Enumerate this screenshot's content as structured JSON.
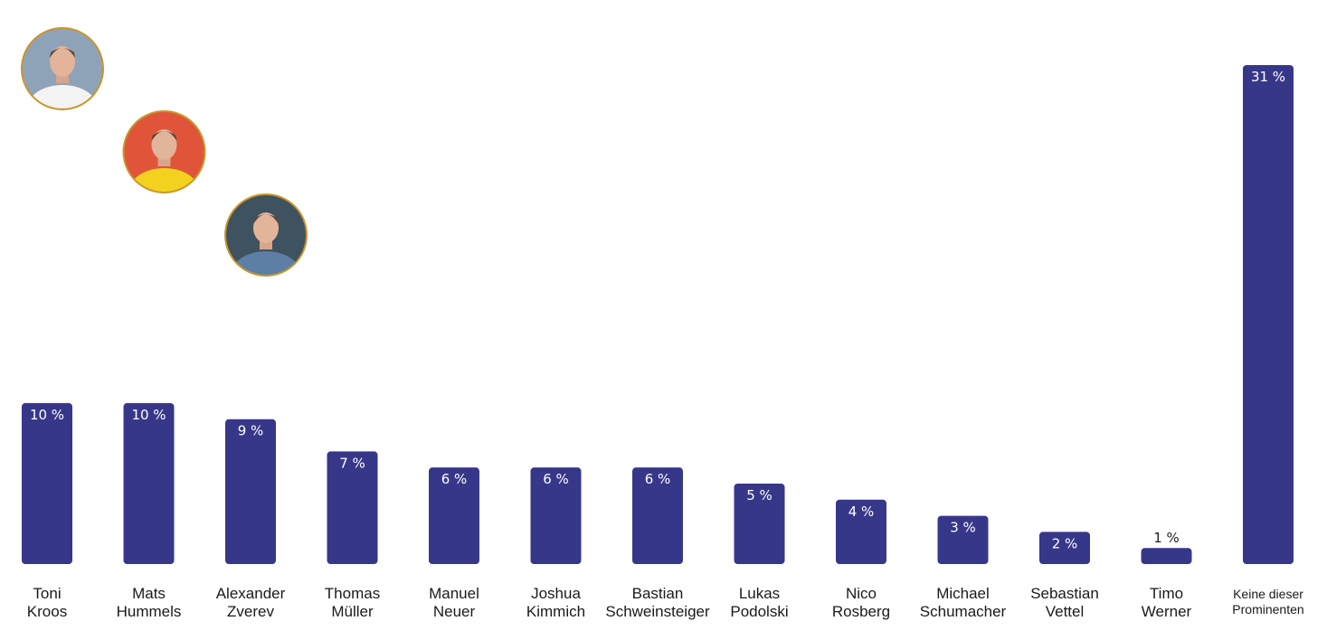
{
  "chart_data": {
    "type": "bar",
    "title": "",
    "xlabel": "",
    "ylabel": "",
    "ylim": [
      0,
      31
    ],
    "grid": false,
    "legend": "none",
    "bar_color": "#37378a",
    "value_suffix": " %",
    "categories": [
      [
        "Toni",
        "Kroos"
      ],
      [
        "Mats",
        "Hummels"
      ],
      [
        "Alexander",
        "Zverev"
      ],
      [
        "Thomas",
        "Müller"
      ],
      [
        "Manuel",
        "Neuer"
      ],
      [
        "Joshua",
        "Kimmich"
      ],
      [
        "Bastian",
        "Schweinsteiger"
      ],
      [
        "Lukas",
        "Podolski"
      ],
      [
        "Nico",
        "Rosberg"
      ],
      [
        "Michael",
        "Schumacher"
      ],
      [
        "Sebastian",
        "Vettel"
      ],
      [
        "Timo",
        "Werner"
      ],
      [
        "Keine dieser",
        "Prominenten"
      ]
    ],
    "values": [
      10,
      10,
      9,
      7,
      6,
      6,
      6,
      5,
      4,
      3,
      2,
      1,
      31
    ],
    "bar_labels": [
      "10 %",
      "10 %",
      "9 %",
      "7 %",
      "6 %",
      "6 %",
      "6 %",
      "5 %",
      "4 %",
      "3 %",
      "2 %",
      "1 %",
      "31 %"
    ],
    "avatars": [
      {
        "category_index": 0,
        "icon": "person-photo-icon",
        "jersey": "#f3f3f3",
        "bg": "#8fa3b8",
        "ring": "#c9962b"
      },
      {
        "category_index": 1,
        "icon": "person-photo-icon",
        "jersey": "#f2d21e",
        "bg": "#e0553a",
        "ring": "#c9962b"
      },
      {
        "category_index": 2,
        "icon": "person-photo-icon",
        "jersey": "#5d7fa6",
        "bg": "#3f5260",
        "ring": "#c9962b"
      }
    ]
  }
}
